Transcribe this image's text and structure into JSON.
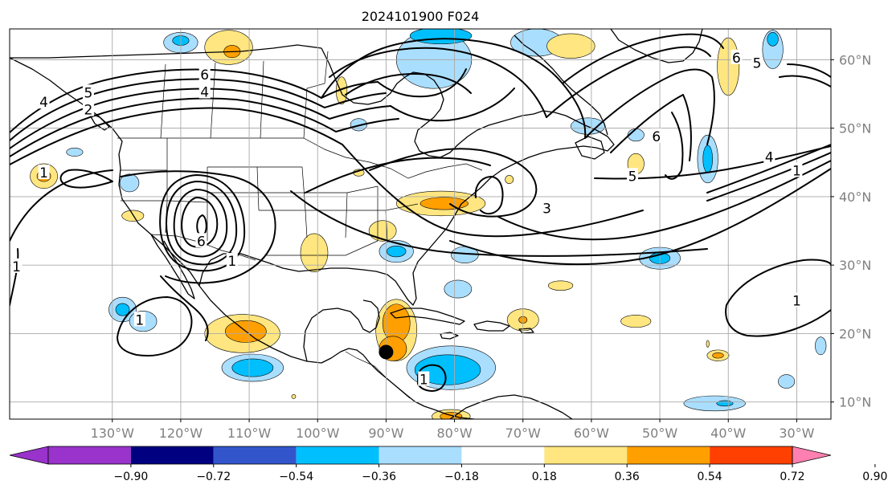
{
  "title": "2024101900 F024",
  "map": {
    "lon_range": [
      -145,
      -25
    ],
    "lat_range": [
      7.5,
      64.5
    ],
    "lon_ticks": [
      {
        "value": -130,
        "label": "130°W"
      },
      {
        "value": -120,
        "label": "120°W"
      },
      {
        "value": -110,
        "label": "110°W"
      },
      {
        "value": -100,
        "label": "100°W"
      },
      {
        "value": -90,
        "label": "90°W"
      },
      {
        "value": -80,
        "label": "80°W"
      },
      {
        "value": -70,
        "label": "70°W"
      },
      {
        "value": -60,
        "label": "60°W"
      },
      {
        "value": -50,
        "label": "50°W"
      },
      {
        "value": -40,
        "label": "40°W"
      },
      {
        "value": -30,
        "label": "30°W"
      }
    ],
    "lat_ticks": [
      {
        "value": 10,
        "label": "10°N"
      },
      {
        "value": 20,
        "label": "20°N"
      },
      {
        "value": 30,
        "label": "30°N"
      },
      {
        "value": 40,
        "label": "40°N"
      },
      {
        "value": 50,
        "label": "50°N"
      },
      {
        "value": 60,
        "label": "60°N"
      }
    ],
    "grid": true,
    "contour_labels": [
      {
        "text": "6",
        "lon": -116.5,
        "lat": 57.8
      },
      {
        "text": "5",
        "lon": -133.5,
        "lat": 55.2
      },
      {
        "text": "4",
        "lon": -116.5,
        "lat": 55.3
      },
      {
        "text": "2",
        "lon": -133.5,
        "lat": 52.7
      },
      {
        "text": "4",
        "lon": -140.0,
        "lat": 53.8
      },
      {
        "text": "1",
        "lon": -140.0,
        "lat": 43.5
      },
      {
        "text": "6",
        "lon": -117.0,
        "lat": 33.5
      },
      {
        "text": "1",
        "lon": -112.5,
        "lat": 30.6
      },
      {
        "text": "1",
        "lon": -144.0,
        "lat": 29.8
      },
      {
        "text": "1",
        "lon": -126.0,
        "lat": 22.0
      },
      {
        "text": "3",
        "lon": -66.5,
        "lat": 38.3
      },
      {
        "text": "5",
        "lon": -54.0,
        "lat": 43.0
      },
      {
        "text": "4",
        "lon": -34.0,
        "lat": 45.8
      },
      {
        "text": "1",
        "lon": -30.0,
        "lat": 43.8
      },
      {
        "text": "6",
        "lon": -50.5,
        "lat": 48.8
      },
      {
        "text": "6",
        "lon": -38.8,
        "lat": 60.3
      },
      {
        "text": "5",
        "lon": -35.8,
        "lat": 59.5
      },
      {
        "text": "1",
        "lon": -30.0,
        "lat": 24.8
      },
      {
        "text": "1",
        "lon": -84.5,
        "lat": 13.3
      }
    ],
    "storm_marker": {
      "lon": -90.0,
      "lat": 17.3
    }
  },
  "colorbar": {
    "labels": [
      "−0.90",
      "−0.72",
      "−0.54",
      "−0.36",
      "−0.18",
      "0.18",
      "0.36",
      "0.54",
      "0.72",
      "0.90"
    ],
    "under_color": "#9933cc",
    "over_color": "#ff80b0",
    "colors": [
      "#9933cc",
      "#000080",
      "#3355cc",
      "#00bfff",
      "#aadeff",
      "#ffffff",
      "#ffe680",
      "#ffa000",
      "#ff4000",
      "#b22222",
      "#ff80b0"
    ]
  },
  "shading": [
    {
      "level": "0.18",
      "color": "#ffe680",
      "lon": -111.0,
      "lat": 20.0,
      "rx": 5.5,
      "ry": 2.8
    },
    {
      "level": "0.36",
      "color": "#ffa000",
      "lon": -110.5,
      "lat": 20.3,
      "rx": 3.0,
      "ry": 1.6
    },
    {
      "level": "-0.18",
      "color": "#aadeff",
      "lon": -109.5,
      "lat": 15.0,
      "rx": 4.5,
      "ry": 2.0
    },
    {
      "level": "-0.36",
      "color": "#00bfff",
      "lon": -109.5,
      "lat": 15.0,
      "rx": 3.0,
      "ry": 1.3
    },
    {
      "level": "0.18",
      "color": "#ffe680",
      "lon": -88.5,
      "lat": 20.5,
      "rx": 3.0,
      "ry": 4.5
    },
    {
      "level": "0.36",
      "color": "#ffa000",
      "lon": -88.5,
      "lat": 21.5,
      "rx": 2.0,
      "ry": 2.8
    },
    {
      "level": "0.36",
      "color": "#ffa000",
      "lon": -89.0,
      "lat": 17.8,
      "rx": 2.0,
      "ry": 1.8
    },
    {
      "level": "-0.18",
      "color": "#aadeff",
      "lon": -80.5,
      "lat": 15.0,
      "rx": 6.5,
      "ry": 3.2
    },
    {
      "level": "-0.36",
      "color": "#00bfff",
      "lon": -81.0,
      "lat": 14.7,
      "rx": 4.8,
      "ry": 2.2
    },
    {
      "level": "-0.72",
      "color": "#3355cc",
      "lon": -84.5,
      "lat": 13.7,
      "rx": 0.7,
      "ry": 0.5
    },
    {
      "level": "0.18",
      "color": "#ffe680",
      "lon": -80.5,
      "lat": 7.9,
      "rx": 2.8,
      "ry": 1.0
    },
    {
      "level": "0.36",
      "color": "#ffa000",
      "lon": -80.5,
      "lat": 7.9,
      "rx": 1.6,
      "ry": 0.6
    },
    {
      "level": "0.18",
      "color": "#ffe680",
      "lon": -82.0,
      "lat": 39.0,
      "rx": 6.5,
      "ry": 1.8
    },
    {
      "level": "0.36",
      "color": "#ffa000",
      "lon": -81.5,
      "lat": 39.0,
      "rx": 3.5,
      "ry": 0.9
    },
    {
      "level": "-0.18",
      "color": "#aadeff",
      "lon": -88.5,
      "lat": 32.0,
      "rx": 2.5,
      "ry": 1.6
    },
    {
      "level": "-0.36",
      "color": "#00bfff",
      "lon": -88.5,
      "lat": 32.0,
      "rx": 1.4,
      "ry": 0.8
    },
    {
      "level": "0.18",
      "color": "#ffe680",
      "lon": -90.5,
      "lat": 35.0,
      "rx": 2.0,
      "ry": 1.5
    },
    {
      "level": "-0.18",
      "color": "#aadeff",
      "lon": -78.5,
      "lat": 31.5,
      "rx": 2.0,
      "ry": 1.2
    },
    {
      "level": "0.18",
      "color": "#ffe680",
      "lon": -100.5,
      "lat": 31.8,
      "rx": 2.0,
      "ry": 2.8
    },
    {
      "level": "-0.18",
      "color": "#aadeff",
      "lon": -79.5,
      "lat": 26.5,
      "rx": 2.0,
      "ry": 1.3
    },
    {
      "level": "-0.18",
      "color": "#aadeff",
      "lon": -128.5,
      "lat": 23.5,
      "rx": 2.0,
      "ry": 1.8
    },
    {
      "level": "-0.36",
      "color": "#00bfff",
      "lon": -128.5,
      "lat": 23.5,
      "rx": 1.0,
      "ry": 0.9
    },
    {
      "level": "-0.18",
      "color": "#aadeff",
      "lon": -125.5,
      "lat": 21.8,
      "rx": 2.0,
      "ry": 1.5
    },
    {
      "level": "0.18",
      "color": "#ffe680",
      "lon": -140.0,
      "lat": 43.0,
      "rx": 2.0,
      "ry": 1.8
    },
    {
      "level": "0.36",
      "color": "#ffa000",
      "lon": -140.0,
      "lat": 43.0,
      "rx": 1.0,
      "ry": 0.8
    },
    {
      "level": "-0.18",
      "color": "#aadeff",
      "lon": -127.5,
      "lat": 42.0,
      "rx": 1.4,
      "ry": 1.3
    },
    {
      "level": "0.18",
      "color": "#ffe680",
      "lon": -127.0,
      "lat": 37.2,
      "rx": 1.6,
      "ry": 0.8
    },
    {
      "level": "-0.18",
      "color": "#aadeff",
      "lon": -135.5,
      "lat": 46.5,
      "rx": 1.2,
      "ry": 0.6
    },
    {
      "level": "-0.18",
      "color": "#aadeff",
      "lon": -120.0,
      "lat": 62.5,
      "rx": 2.5,
      "ry": 1.5
    },
    {
      "level": "-0.36",
      "color": "#00bfff",
      "lon": -120.0,
      "lat": 62.8,
      "rx": 1.2,
      "ry": 0.7
    },
    {
      "level": "0.18",
      "color": "#ffe680",
      "lon": -113.0,
      "lat": 61.8,
      "rx": 3.5,
      "ry": 2.5
    },
    {
      "level": "0.36",
      "color": "#ffa000",
      "lon": -112.5,
      "lat": 61.2,
      "rx": 1.2,
      "ry": 0.9
    },
    {
      "level": "-0.18",
      "color": "#aadeff",
      "lon": -83.0,
      "lat": 60.0,
      "rx": 5.5,
      "ry": 4.2
    },
    {
      "level": "-0.36",
      "color": "#00bfff",
      "lon": -82.0,
      "lat": 63.5,
      "rx": 4.5,
      "ry": 1.2
    },
    {
      "level": "-0.18",
      "color": "#aadeff",
      "lon": -68.0,
      "lat": 62.5,
      "rx": 3.8,
      "ry": 2.0
    },
    {
      "level": "0.18",
      "color": "#ffe680",
      "lon": -63.0,
      "lat": 62.0,
      "rx": 3.5,
      "ry": 1.8
    },
    {
      "level": "-0.18",
      "color": "#aadeff",
      "lon": -60.5,
      "lat": 50.3,
      "rx": 2.5,
      "ry": 1.2
    },
    {
      "level": "-0.18",
      "color": "#aadeff",
      "lon": -53.5,
      "lat": 49.0,
      "rx": 1.2,
      "ry": 0.9
    },
    {
      "level": "-0.18",
      "color": "#aadeff",
      "lon": -94.0,
      "lat": 50.5,
      "rx": 1.2,
      "ry": 0.9
    },
    {
      "level": "0.18",
      "color": "#ffe680",
      "lon": -53.5,
      "lat": 44.8,
      "rx": 1.2,
      "ry": 1.5
    },
    {
      "level": "0.18",
      "color": "#ffe680",
      "lon": -72.0,
      "lat": 42.5,
      "rx": 0.6,
      "ry": 0.6
    },
    {
      "level": "0.18",
      "color": "#ffe680",
      "lon": -96.5,
      "lat": 55.5,
      "rx": 0.8,
      "ry": 2.0
    },
    {
      "level": "0.18",
      "color": "#ffe680",
      "lon": -94.0,
      "lat": 43.5,
      "rx": 0.8,
      "ry": 0.5
    },
    {
      "level": "-0.18",
      "color": "#aadeff",
      "lon": -43.0,
      "lat": 45.5,
      "rx": 1.5,
      "ry": 3.5
    },
    {
      "level": "-0.36",
      "color": "#00bfff",
      "lon": -43.0,
      "lat": 45.5,
      "rx": 0.7,
      "ry": 2.0
    },
    {
      "level": "0.18",
      "color": "#ffe680",
      "lon": -40.0,
      "lat": 59.0,
      "rx": 1.6,
      "ry": 4.2
    },
    {
      "level": "-0.18",
      "color": "#aadeff",
      "lon": -33.5,
      "lat": 61.5,
      "rx": 1.5,
      "ry": 2.8
    },
    {
      "level": "-0.36",
      "color": "#00bfff",
      "lon": -33.5,
      "lat": 63.0,
      "rx": 0.8,
      "ry": 1.0
    },
    {
      "level": "-0.18",
      "color": "#aadeff",
      "lon": -50.0,
      "lat": 31.0,
      "rx": 3.0,
      "ry": 1.6
    },
    {
      "level": "-0.36",
      "color": "#00bfff",
      "lon": -50.0,
      "lat": 31.0,
      "rx": 1.5,
      "ry": 0.8
    },
    {
      "level": "0.18",
      "color": "#ffe680",
      "lon": -64.5,
      "lat": 27.0,
      "rx": 1.8,
      "ry": 0.7
    },
    {
      "level": "0.18",
      "color": "#ffe680",
      "lon": -70.0,
      "lat": 22.0,
      "rx": 2.3,
      "ry": 1.6
    },
    {
      "level": "0.36",
      "color": "#ffa000",
      "lon": -70.0,
      "lat": 22.0,
      "rx": 0.6,
      "ry": 0.5
    },
    {
      "level": "0.18",
      "color": "#ffe680",
      "lon": -53.5,
      "lat": 21.8,
      "rx": 2.2,
      "ry": 0.9
    },
    {
      "level": "0.18",
      "color": "#ffe680",
      "lon": -41.5,
      "lat": 16.8,
      "rx": 1.6,
      "ry": 0.8
    },
    {
      "level": "0.36",
      "color": "#ffa000",
      "lon": -41.5,
      "lat": 16.8,
      "rx": 0.8,
      "ry": 0.4
    },
    {
      "level": "-0.18",
      "color": "#aadeff",
      "lon": -42.0,
      "lat": 9.8,
      "rx": 4.5,
      "ry": 1.1
    },
    {
      "level": "-0.36",
      "color": "#00bfff",
      "lon": -40.5,
      "lat": 9.8,
      "rx": 1.2,
      "ry": 0.4
    },
    {
      "level": "-0.18",
      "color": "#aadeff",
      "lon": -26.5,
      "lat": 18.2,
      "rx": 0.8,
      "ry": 1.3
    },
    {
      "level": "-0.18",
      "color": "#aadeff",
      "lon": -31.5,
      "lat": 13.0,
      "rx": 1.2,
      "ry": 1.0
    },
    {
      "level": "0.18",
      "color": "#ffe680",
      "lon": -103.5,
      "lat": 10.8,
      "rx": 0.3,
      "ry": 0.3
    },
    {
      "level": "0.18",
      "color": "#ffe680",
      "lon": -43.0,
      "lat": 18.5,
      "rx": 0.2,
      "ry": 0.5
    }
  ]
}
